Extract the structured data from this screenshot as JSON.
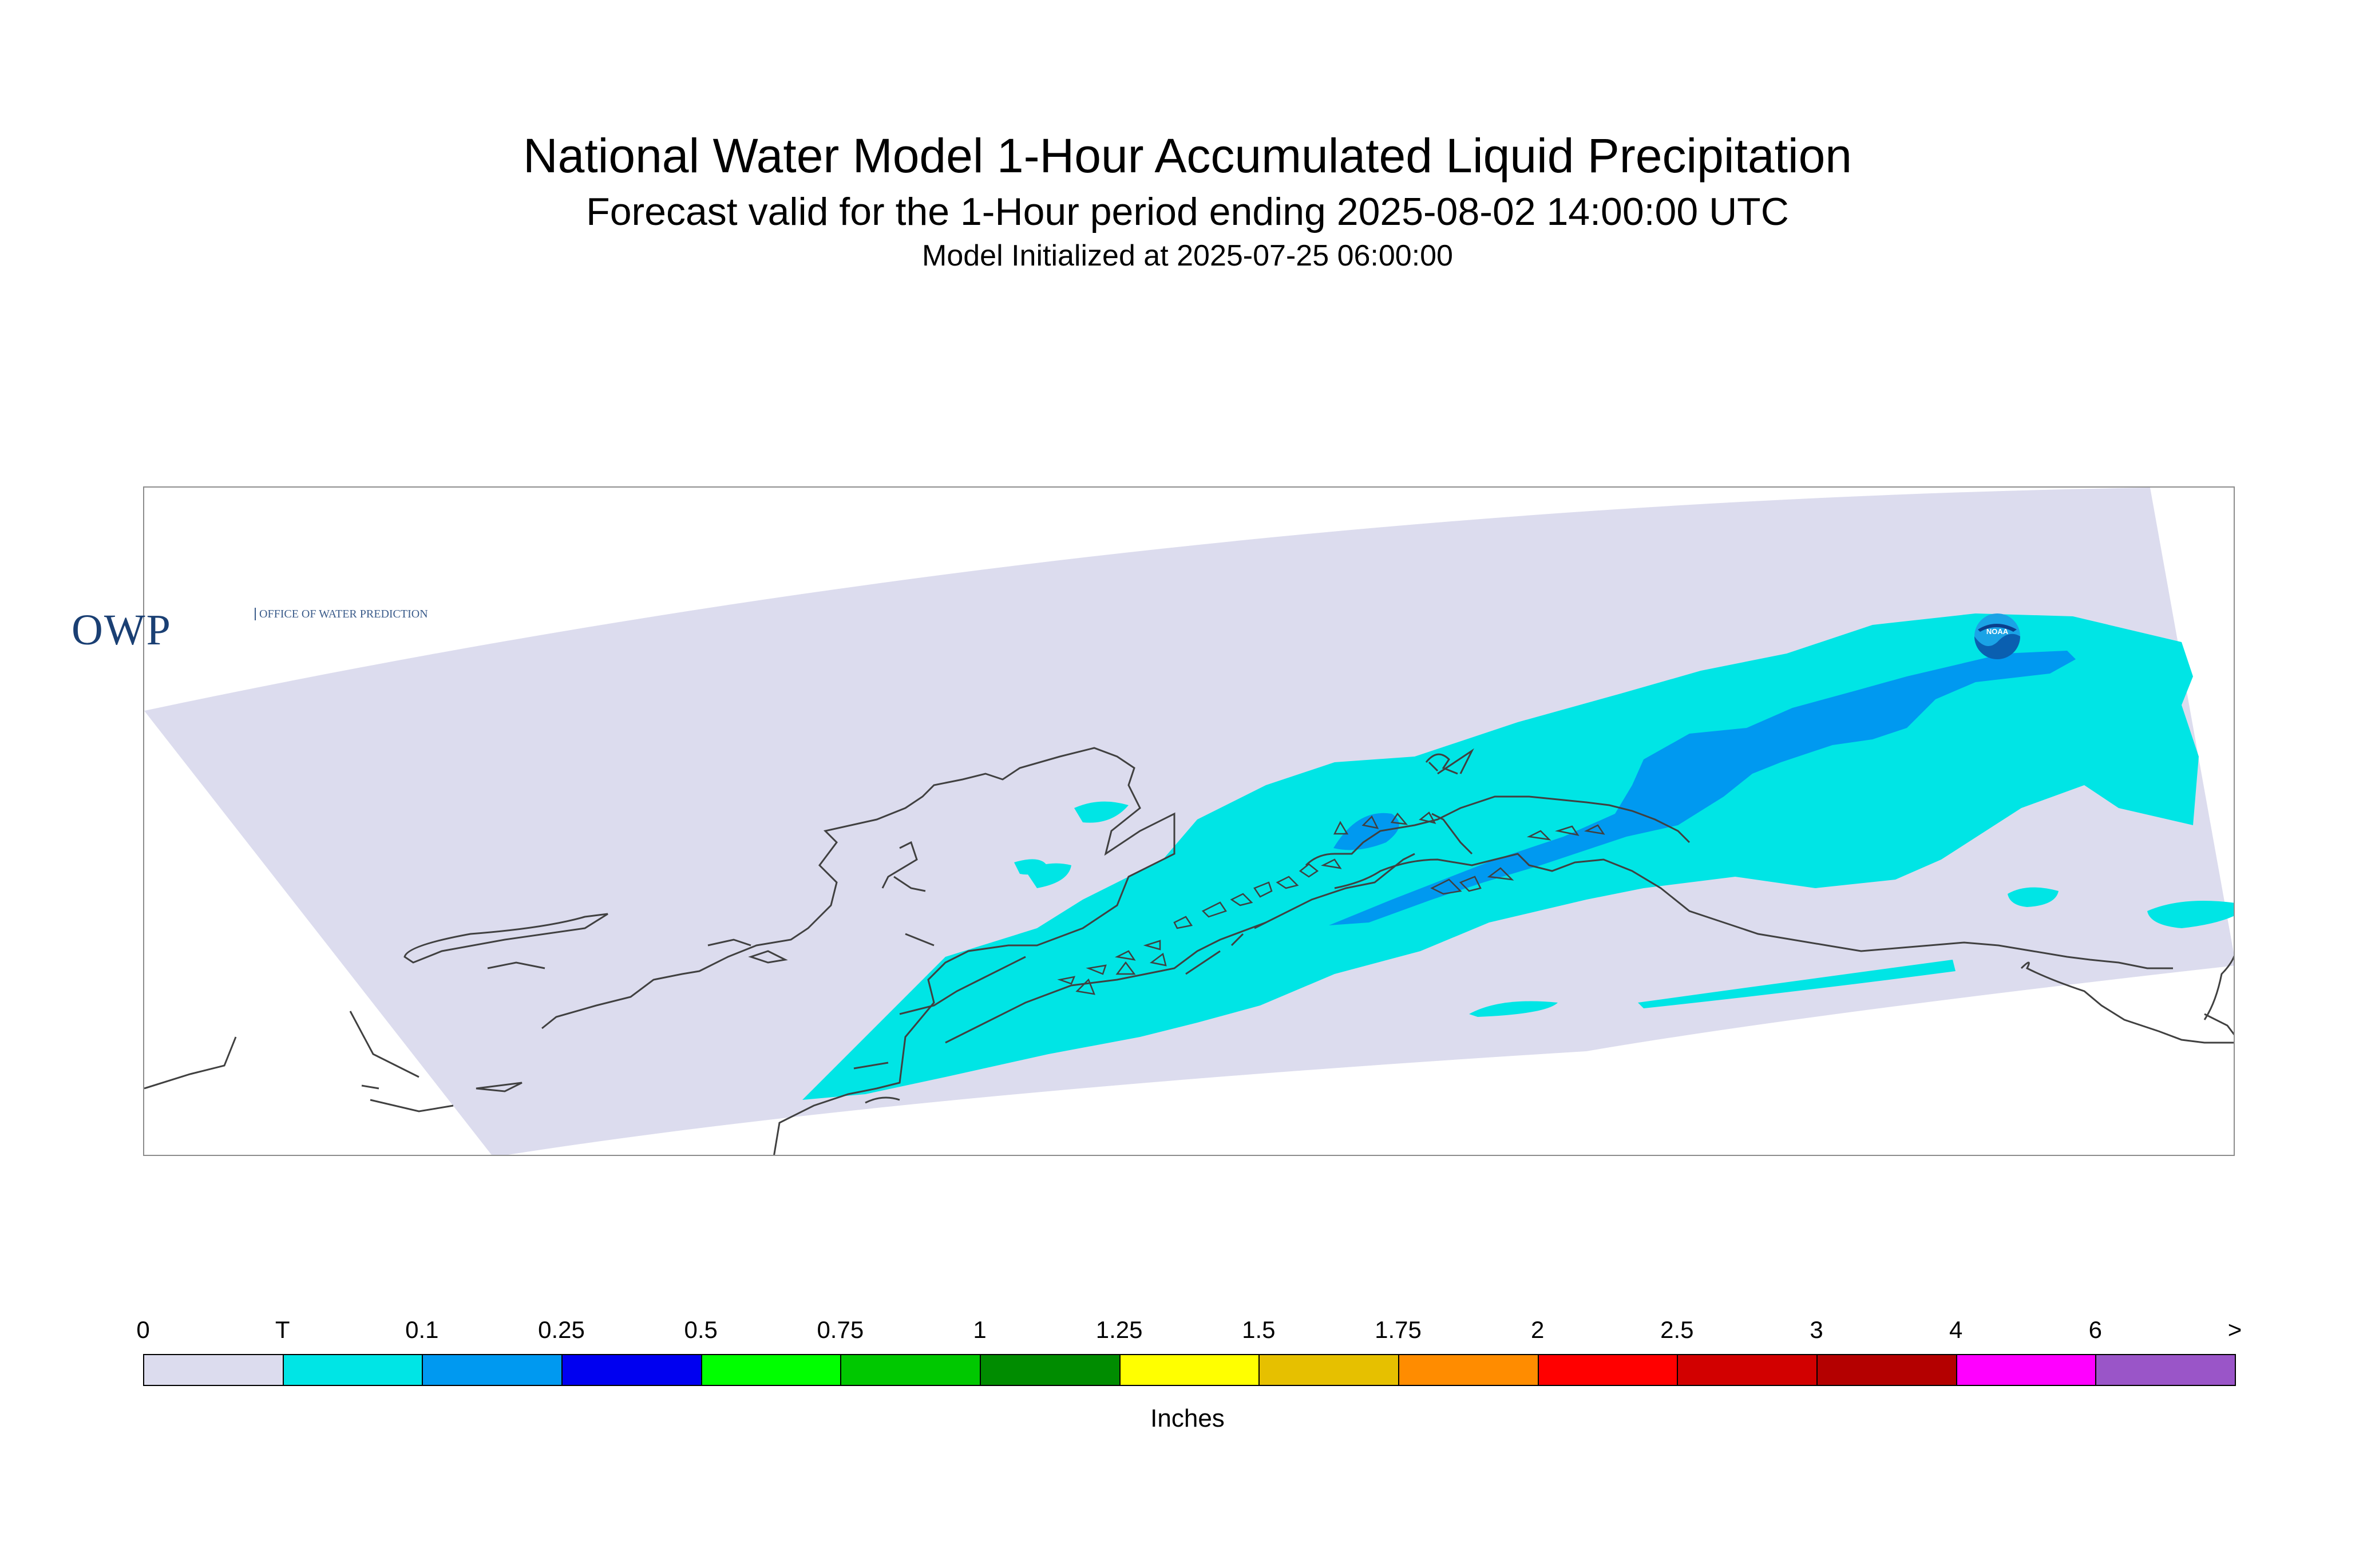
{
  "title": "National Water Model 1-Hour Accumulated Liquid Precipitation",
  "subtitle": "Forecast valid for the 1-Hour period ending 2025-08-02 14:00:00 UTC",
  "init_text": "Model Initialized at 2025-07-25 06:00:00",
  "logos": {
    "owp_main": "OWP",
    "owp_sub": "OFFICE OF WATER PREDICTION",
    "noaa": "NOAA"
  },
  "legend": {
    "units": "Inches",
    "tick_labels": [
      "0",
      "T",
      "0.1",
      "0.25",
      "0.5",
      "0.75",
      "1",
      "1.25",
      "1.5",
      "1.75",
      "2",
      "2.5",
      "3",
      "4",
      "6",
      ">"
    ],
    "colors": [
      "#dcdcee",
      "#00e5e5",
      "#0099f0",
      "#0000f0",
      "#00ff00",
      "#00c800",
      "#008c00",
      "#ffff00",
      "#e6c000",
      "#ff8c00",
      "#ff0000",
      "#d20000",
      "#b40000",
      "#ff00ff",
      "#9a55c8"
    ]
  },
  "colors": {
    "domain_fill": "#dcdcee",
    "trace": "#00e5e5",
    "light": "#0099f0",
    "coastline": "#404040"
  }
}
